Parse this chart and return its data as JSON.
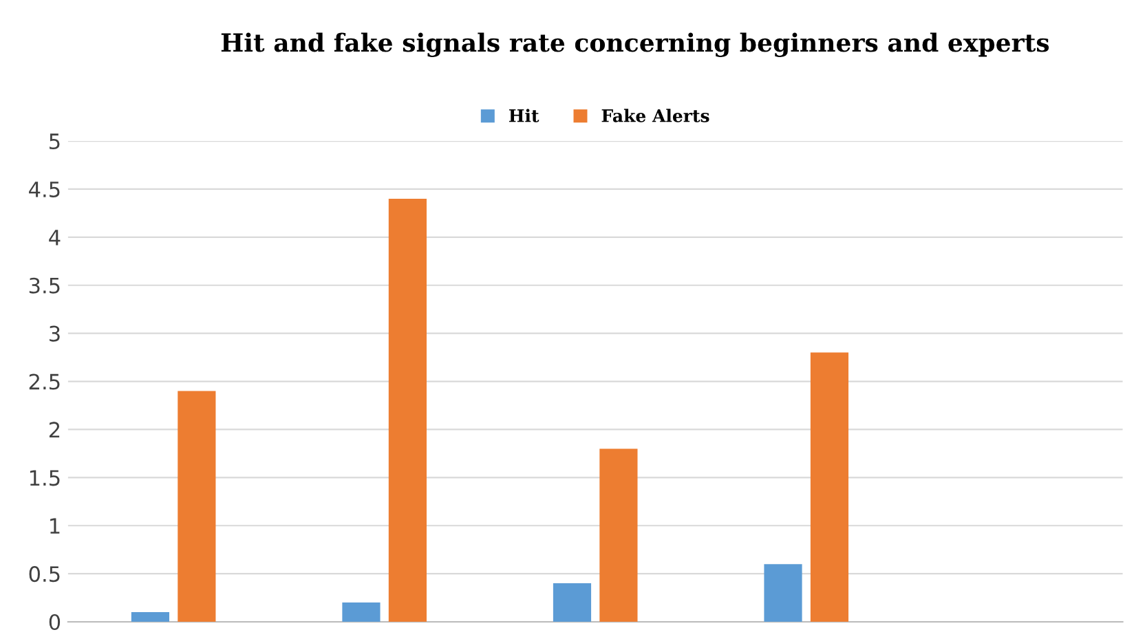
{
  "chart_data": {
    "type": "bar",
    "title": "Hit and fake signals rate concerning beginners and experts",
    "categories": [
      null,
      null,
      null,
      null,
      null
    ],
    "series": [
      {
        "name": "Hit",
        "color": "#5b9bd5",
        "values": [
          0.1,
          0.2,
          0.4,
          0.6,
          null
        ]
      },
      {
        "name": "Fake Alerts",
        "color": "#ed7d31",
        "values": [
          2.4,
          4.4,
          1.8,
          2.8,
          null
        ]
      }
    ],
    "ylim": [
      0,
      5
    ],
    "yticks": [
      0,
      0.5,
      1,
      1.5,
      2,
      2.5,
      3,
      3.5,
      4,
      4.5,
      5
    ],
    "grid": "y",
    "legend": "top"
  }
}
